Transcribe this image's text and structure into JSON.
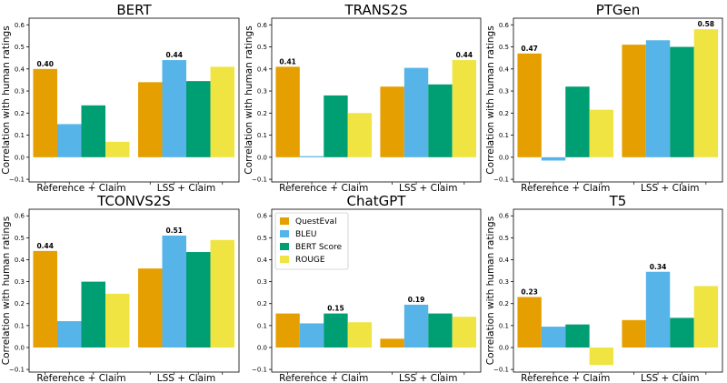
{
  "colors": {
    "QuestEval": "#E69F00",
    "BLEU": "#56B4E9",
    "BERT Score": "#009E73",
    "ROUGE": "#F0E442"
  },
  "legend": [
    "QuestEval",
    "BLEU",
    "BERT Score",
    "ROUGE"
  ],
  "chart_data": [
    {
      "type": "bar",
      "title": "BERT",
      "ylabel": "Correlation with human ratings",
      "categories": [
        "Reference + Claim",
        "LSS + Claim"
      ],
      "ylim": [
        -0.1,
        0.6
      ],
      "yticks": [
        "−0.1",
        "0.0",
        "0.1",
        "0.2",
        "0.3",
        "0.4",
        "0.5",
        "0.6"
      ],
      "series": [
        {
          "name": "QuestEval",
          "values": [
            0.4,
            0.34
          ]
        },
        {
          "name": "BLEU",
          "values": [
            0.15,
            0.44
          ]
        },
        {
          "name": "BERT Score",
          "values": [
            0.235,
            0.345
          ]
        },
        {
          "name": "ROUGE",
          "values": [
            0.07,
            0.41
          ]
        }
      ],
      "annotations": [
        {
          "category": 0,
          "series": 0,
          "text": "0.40"
        },
        {
          "category": 1,
          "series": 1,
          "text": "0.44"
        }
      ]
    },
    {
      "type": "bar",
      "title": "TRANS2S",
      "ylabel": "Correlation with human ratings",
      "categories": [
        "Reference + Claim",
        "LSS + Claim"
      ],
      "ylim": [
        -0.1,
        0.6
      ],
      "yticks": [
        "−0.1",
        "0.0",
        "0.1",
        "0.2",
        "0.3",
        "0.4",
        "0.5",
        "0.6"
      ],
      "series": [
        {
          "name": "QuestEval",
          "values": [
            0.41,
            0.32
          ]
        },
        {
          "name": "BLEU",
          "values": [
            0.005,
            0.405
          ]
        },
        {
          "name": "BERT Score",
          "values": [
            0.28,
            0.33
          ]
        },
        {
          "name": "ROUGE",
          "values": [
            0.2,
            0.44
          ]
        }
      ],
      "annotations": [
        {
          "category": 0,
          "series": 0,
          "text": "0.41"
        },
        {
          "category": 1,
          "series": 3,
          "text": "0.44"
        }
      ]
    },
    {
      "type": "bar",
      "title": "PTGen",
      "ylabel": "Correlation with human ratings",
      "categories": [
        "Reference + Claim",
        "LSS + Claim"
      ],
      "ylim": [
        -0.1,
        0.6
      ],
      "yticks": [
        "−0.1",
        "0.0",
        "0.1",
        "0.2",
        "0.3",
        "0.4",
        "0.5",
        "0.6"
      ],
      "series": [
        {
          "name": "QuestEval",
          "values": [
            0.47,
            0.51
          ]
        },
        {
          "name": "BLEU",
          "values": [
            -0.015,
            0.53
          ]
        },
        {
          "name": "BERT Score",
          "values": [
            0.32,
            0.5
          ]
        },
        {
          "name": "ROUGE",
          "values": [
            0.215,
            0.58
          ]
        }
      ],
      "annotations": [
        {
          "category": 0,
          "series": 0,
          "text": "0.47"
        },
        {
          "category": 1,
          "series": 3,
          "text": "0.58"
        }
      ]
    },
    {
      "type": "bar",
      "title": "TCONVS2S",
      "ylabel": "Correlation with human ratings",
      "categories": [
        "Reference + Claim",
        "LSS + Claim"
      ],
      "ylim": [
        -0.1,
        0.6
      ],
      "yticks": [
        "−0.1",
        "0.0",
        "0.1",
        "0.2",
        "0.3",
        "0.4",
        "0.5",
        "0.6"
      ],
      "series": [
        {
          "name": "QuestEval",
          "values": [
            0.44,
            0.36
          ]
        },
        {
          "name": "BLEU",
          "values": [
            0.12,
            0.51
          ]
        },
        {
          "name": "BERT Score",
          "values": [
            0.3,
            0.435
          ]
        },
        {
          "name": "ROUGE",
          "values": [
            0.245,
            0.49
          ]
        }
      ],
      "annotations": [
        {
          "category": 0,
          "series": 0,
          "text": "0.44"
        },
        {
          "category": 1,
          "series": 1,
          "text": "0.51"
        }
      ]
    },
    {
      "type": "bar",
      "title": "ChatGPT",
      "ylabel": "",
      "categories": [
        "Reference + Claim",
        "LSS + Claim"
      ],
      "ylim": [
        -0.1,
        0.6
      ],
      "yticks": [
        "−0.1",
        "0.0",
        "0.1",
        "0.2",
        "0.3",
        "0.4",
        "0.5",
        "0.6"
      ],
      "legend": true,
      "series": [
        {
          "name": "QuestEval",
          "values": [
            0.155,
            0.04
          ]
        },
        {
          "name": "BLEU",
          "values": [
            0.11,
            0.195
          ]
        },
        {
          "name": "BERT Score",
          "values": [
            0.155,
            0.155
          ]
        },
        {
          "name": "ROUGE",
          "values": [
            0.115,
            0.14
          ]
        }
      ],
      "annotations": [
        {
          "category": 0,
          "series": 2,
          "text": "0.15"
        },
        {
          "category": 1,
          "series": 1,
          "text": "0.19"
        }
      ]
    },
    {
      "type": "bar",
      "title": "T5",
      "ylabel": "Correlation with human ratings",
      "categories": [
        "Reference + Claim",
        "LSS + Claim"
      ],
      "ylim": [
        -0.1,
        0.6
      ],
      "yticks": [
        "−0.1",
        "0.0",
        "0.1",
        "0.2",
        "0.3",
        "0.4",
        "0.5",
        "0.6"
      ],
      "series": [
        {
          "name": "QuestEval",
          "values": [
            0.23,
            0.125
          ]
        },
        {
          "name": "BLEU",
          "values": [
            0.095,
            0.345
          ]
        },
        {
          "name": "BERT Score",
          "values": [
            0.105,
            0.135
          ]
        },
        {
          "name": "ROUGE",
          "values": [
            -0.08,
            0.28
          ]
        }
      ],
      "annotations": [
        {
          "category": 0,
          "series": 0,
          "text": "0.23"
        },
        {
          "category": 1,
          "series": 1,
          "text": "0.34"
        }
      ]
    }
  ]
}
